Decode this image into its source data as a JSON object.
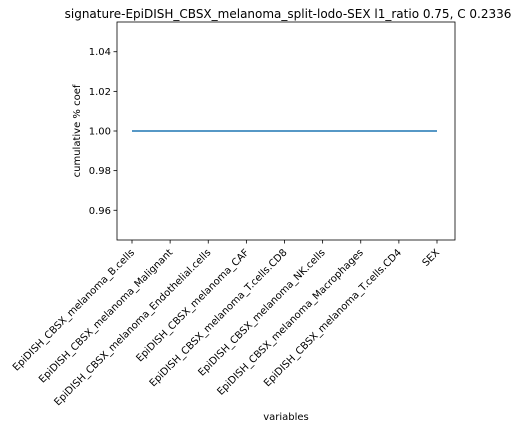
{
  "chart_data": {
    "type": "line",
    "title": "signature-EpiDISH_CBSX_melanoma_split-lodo-SEX l1_ratio 0.75, C 0.2336",
    "xlabel": "variables",
    "ylabel": "cumulative % coef",
    "categories": [
      "EpiDISH_CBSX_melanoma_B.cells",
      "EpiDISH_CBSX_melanoma_Malignant",
      "EpiDISH_CBSX_melanoma_Endothelial.cells",
      "EpiDISH_CBSX_melanoma_CAF",
      "EpiDISH_CBSX_melanoma_T.cells.CD8",
      "EpiDISH_CBSX_melanoma_NK.cells",
      "EpiDISH_CBSX_melanoma_Macrophages",
      "EpiDISH_CBSX_melanoma_T.cells.CD4",
      "SEX"
    ],
    "series": [
      {
        "values": [
          1.0,
          1.0,
          1.0,
          1.0,
          1.0,
          1.0,
          1.0,
          1.0,
          1.0
        ]
      }
    ],
    "ylim": [
      0.945,
      1.055
    ],
    "yticks": [
      "0.96",
      "0.98",
      "1.00",
      "1.02",
      "1.04"
    ],
    "ytick_values": [
      0.96,
      0.98,
      1.0,
      1.02,
      1.04
    ],
    "line_color": "#1f77b4",
    "grid": false,
    "legend": "none"
  }
}
